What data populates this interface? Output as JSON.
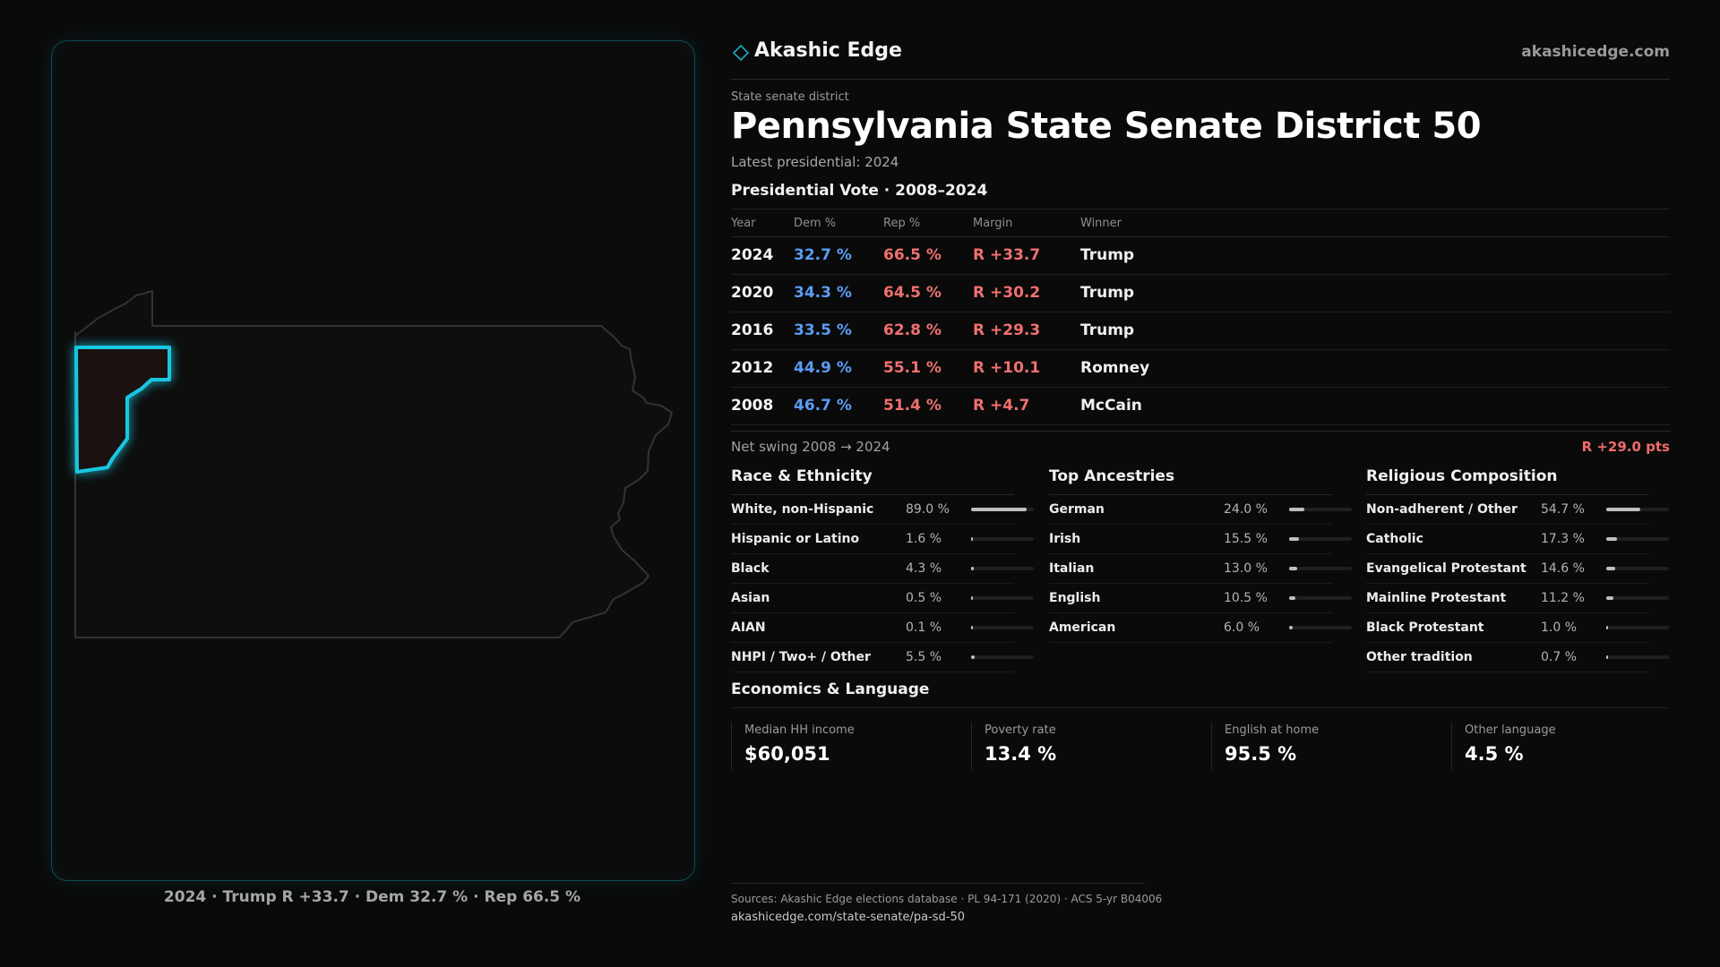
{
  "header": {
    "brand": "Akashic Edge",
    "site": "akashicedge.com"
  },
  "district": {
    "kicker": "State senate district",
    "title": "Pennsylvania State Senate District 50",
    "latest": "Latest presidential: 2024"
  },
  "vote": {
    "title": "Presidential Vote · 2008–2024",
    "headers": {
      "year": "Year",
      "dem": "Dem %",
      "rep": "Rep %",
      "margin": "Margin",
      "winner": "Winner"
    },
    "rows": [
      {
        "year": "2024",
        "dem": "32.7 %",
        "rep": "66.5 %",
        "margin": "R +33.7",
        "winner": "Trump"
      },
      {
        "year": "2020",
        "dem": "34.3 %",
        "rep": "64.5 %",
        "margin": "R +30.2",
        "winner": "Trump"
      },
      {
        "year": "2016",
        "dem": "33.5 %",
        "rep": "62.8 %",
        "margin": "R +29.3",
        "winner": "Trump"
      },
      {
        "year": "2012",
        "dem": "44.9 %",
        "rep": "55.1 %",
        "margin": "R +10.1",
        "winner": "Romney"
      },
      {
        "year": "2008",
        "dem": "46.7 %",
        "rep": "51.4 %",
        "margin": "R +4.7",
        "winner": "McCain"
      }
    ]
  },
  "swing": {
    "label": "Net swing 2008 → 2024",
    "value": "R +29.0 pts"
  },
  "race": {
    "title": "Race & Ethnicity",
    "rows": [
      {
        "label": "White, non-Hispanic",
        "value": "89.0 %",
        "share": 0.89
      },
      {
        "label": "Hispanic or Latino",
        "value": "1.6 %",
        "share": 0.016
      },
      {
        "label": "Black",
        "value": "4.3 %",
        "share": 0.043
      },
      {
        "label": "Asian",
        "value": "0.5 %",
        "share": 0.005
      },
      {
        "label": "AIAN",
        "value": "0.1 %",
        "share": 0.001
      },
      {
        "label": "NHPI / Two+ / Other",
        "value": "5.5 %",
        "share": 0.055
      }
    ]
  },
  "ancestry": {
    "title": "Top Ancestries",
    "rows": [
      {
        "label": "German",
        "value": "24.0 %",
        "share": 0.24
      },
      {
        "label": "Irish",
        "value": "15.5 %",
        "share": 0.155
      },
      {
        "label": "Italian",
        "value": "13.0 %",
        "share": 0.13
      },
      {
        "label": "English",
        "value": "10.5 %",
        "share": 0.105
      },
      {
        "label": "American",
        "value": "6.0 %",
        "share": 0.06
      }
    ]
  },
  "religion": {
    "title": "Religious Composition",
    "rows": [
      {
        "label": "Non-adherent / Other",
        "value": "54.7 %",
        "share": 0.547
      },
      {
        "label": "Catholic",
        "value": "17.3 %",
        "share": 0.173
      },
      {
        "label": "Evangelical Protestant",
        "value": "14.6 %",
        "share": 0.146
      },
      {
        "label": "Mainline Protestant",
        "value": "11.2 %",
        "share": 0.112
      },
      {
        "label": "Black Protestant",
        "value": "1.0 %",
        "share": 0.01
      },
      {
        "label": "Other tradition",
        "value": "0.7 %",
        "share": 0.007
      }
    ]
  },
  "economics": {
    "title": "Economics & Language",
    "items": [
      {
        "label": "Median HH income",
        "value": "$60,051"
      },
      {
        "label": "Poverty rate",
        "value": "13.4 %"
      },
      {
        "label": "English at home",
        "value": "95.5 %"
      },
      {
        "label": "Other language",
        "value": "4.5 %"
      }
    ]
  },
  "map": {
    "caption": "2024 · Trump R +33.7 · Dem 32.7 % · Rep 66.5 %"
  },
  "sources": {
    "line1": "Sources: Akashic Edge elections database · PL 94-171 (2020) · ACS 5-yr B04006",
    "line2": "akashicedge.com/state-senate/pa-sd-50"
  },
  "colors": {
    "accent": "#19c6e0",
    "dem": "#5b9cf5",
    "rep": "#f07070",
    "background": "#0a0a0a"
  }
}
